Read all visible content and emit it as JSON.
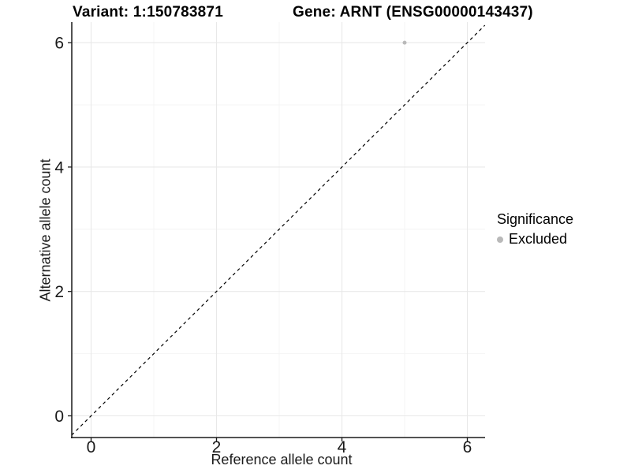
{
  "chart_data": {
    "type": "scatter",
    "title_variant": "Variant: 1:150783871",
    "title_gene": "Gene: ARNT (ENSG00000143437)",
    "xlabel": "Reference allele count",
    "ylabel": "Alternative allele count",
    "xticks": [
      0,
      2,
      4,
      6
    ],
    "yticks": [
      0,
      2,
      4,
      6
    ],
    "xminor": [
      1,
      3,
      5
    ],
    "yminor": [
      1,
      3,
      5
    ],
    "xlim": [
      -0.31,
      6.28
    ],
    "ylim": [
      -0.35,
      6.33
    ],
    "grid": "on",
    "points": [
      {
        "x": 5,
        "y": 6,
        "series": "Excluded"
      }
    ],
    "reference_line": {
      "type": "identity",
      "style": "dashed"
    },
    "legend": {
      "title": "Significance",
      "position": "right",
      "entries": [
        {
          "label": "Excluded",
          "color": "#b9b9b9"
        }
      ]
    },
    "colors": {
      "point": "#b9b9b9",
      "axis": "#1a1a1a",
      "grid_major": "#e8e8e8",
      "grid_minor": "#f4f4f4",
      "reference_line": "#000000",
      "background": "#ffffff"
    }
  }
}
